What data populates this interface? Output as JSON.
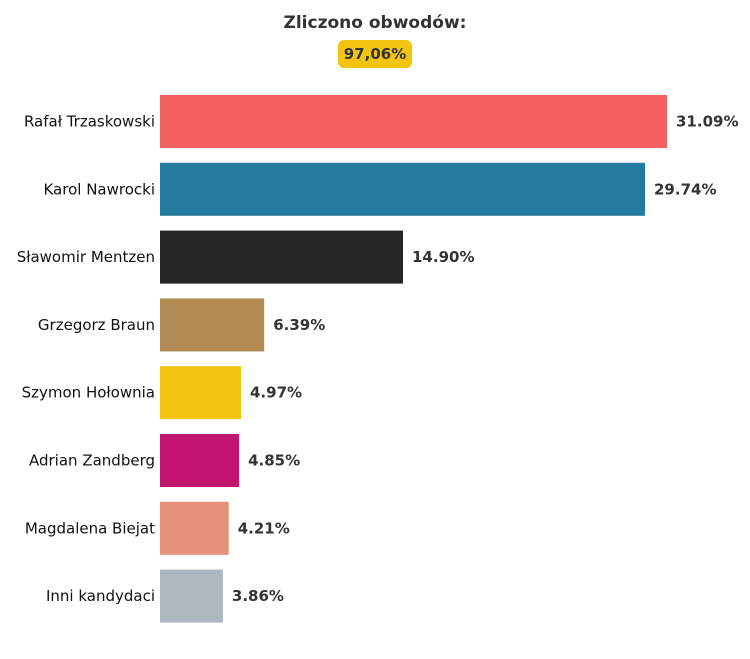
{
  "header": {
    "title": "Zliczono obwodów:",
    "badge": "97,06%",
    "badge_color": "#f2c40f"
  },
  "chart_data": {
    "type": "bar",
    "orientation": "horizontal",
    "categories": [
      "Rafał Trzaskowski",
      "Karol Nawrocki",
      "Sławomir Mentzen",
      "Grzegorz Braun",
      "Szymon Hołownia",
      "Adrian Zandberg",
      "Magdalena Biejat",
      "Inni kandydaci"
    ],
    "values": [
      31.09,
      29.74,
      14.9,
      6.39,
      4.97,
      4.85,
      4.21,
      3.86
    ],
    "value_labels": [
      "31.09%",
      "29.74%",
      "14.90%",
      "6.39%",
      "4.97%",
      "4.85%",
      "4.21%",
      "3.86%"
    ],
    "colors": [
      "#f26060",
      "#247ba0",
      "#252525",
      "#b38b55",
      "#f2c40f",
      "#c2156f",
      "#e4937a",
      "#aeb6bf"
    ],
    "xlim": [
      0,
      31.09
    ],
    "grid": false,
    "legend": "none"
  }
}
